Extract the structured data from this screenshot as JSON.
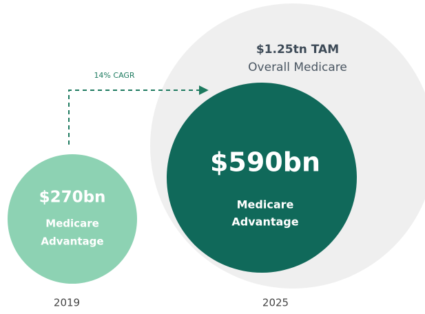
{
  "growth": {
    "label": "14% CAGR"
  },
  "total_market": {
    "value": "$1.25tn TAM",
    "label": "Overall Medicare"
  },
  "past": {
    "value": "$270bn",
    "label_lines": [
      "Medicare",
      "Advantage"
    ],
    "year": "2019"
  },
  "future": {
    "value": "$590bn",
    "label_lines": [
      "Medicare",
      "Advantage"
    ],
    "year": "2025"
  }
}
